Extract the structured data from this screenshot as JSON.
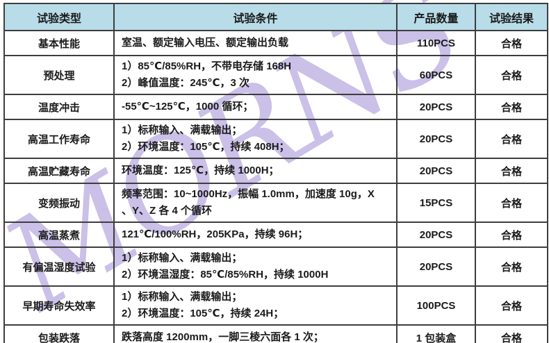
{
  "watermark": {
    "text": "MORNS",
    "color": "#cbc0e8"
  },
  "table": {
    "colors": {
      "header_bg": "#b8dce8",
      "border": "#3d3d3d",
      "text": "#1a1a1a"
    },
    "headers": [
      "试验类型",
      "试验条件",
      "产品数量",
      "试验结果"
    ],
    "rows": [
      {
        "type": "基本性能",
        "conditions": [
          "室温、额定输入电压、额定输出负载"
        ],
        "quantity": "110PCS",
        "result": "合格"
      },
      {
        "type": "预处理",
        "conditions": [
          "1）85℃/85%RH，不带电存储 168H",
          "2）峰值温度：245℃，3 次"
        ],
        "quantity": "60PCS",
        "result": "合格"
      },
      {
        "type": "温度冲击",
        "conditions": [
          "-55℃~125℃，1000 循环；"
        ],
        "quantity": "20PCS",
        "result": "合格"
      },
      {
        "type": "高温工作寿命",
        "conditions": [
          "1）标称输入、满载输出；",
          "2）环境温度：105℃，持续 408H；"
        ],
        "quantity": "20PCS",
        "result": "合格"
      },
      {
        "type": "高温贮藏寿命",
        "conditions": [
          "环境温度：125℃，持续 1000H；"
        ],
        "quantity": "20PCS",
        "result": "合格"
      },
      {
        "type": "变频振动",
        "conditions": [
          "频率范围：10~1000Hz，振幅 1.0mm，加速度 10g，X",
          "、Y、Z 各 4 个循环"
        ],
        "quantity": "15PCS",
        "result": "合格"
      },
      {
        "type": "高温蒸煮",
        "conditions": [
          "121℃/100%RH，205KPa，持续 96H；"
        ],
        "quantity": "20PCS",
        "result": "合格"
      },
      {
        "type": "有偏温湿度试验",
        "conditions": [
          "1）标称输入、满载输出；",
          "2）环境温湿度：85℃/85%RH，持续 1000H"
        ],
        "quantity": "20PCS",
        "result": "合格"
      },
      {
        "type": "早期寿命失效率",
        "conditions": [
          "1）标称输入、满载输出；",
          "2）环境温度：105℃，持续 24H；"
        ],
        "quantity": "100PCS",
        "result": "合格"
      },
      {
        "type": "包装跌落",
        "conditions": [
          "跌落高度 1200mm，一脚三棱六面各 1 次；"
        ],
        "quantity": "1 包装盒",
        "result": "合格"
      }
    ]
  }
}
